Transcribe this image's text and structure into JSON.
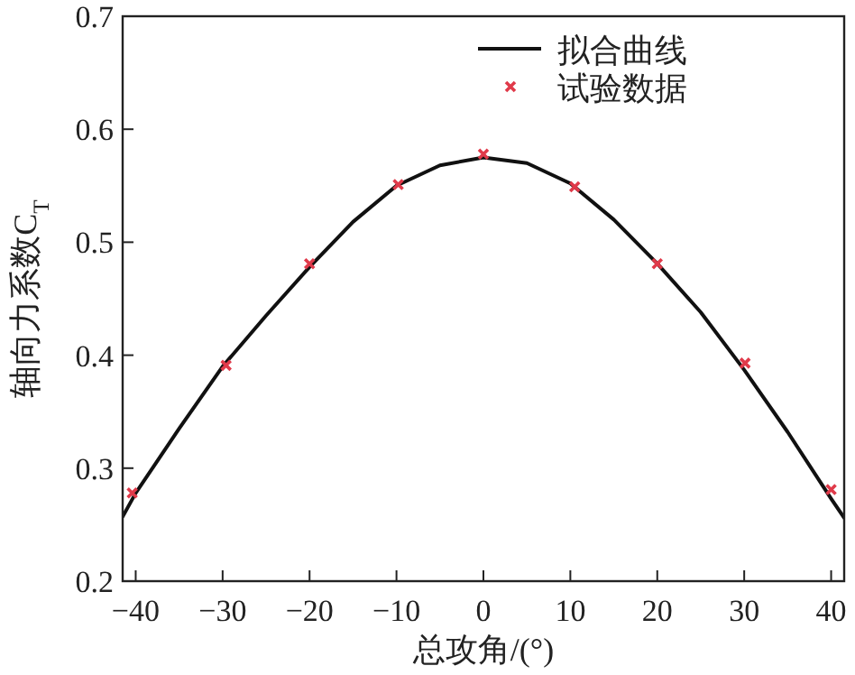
{
  "chart_data": {
    "type": "line",
    "xlabel": "总攻角/(°)",
    "ylabel": "轴向力系数C$_{T}$",
    "xlim": [
      -41.5,
      41.5
    ],
    "ylim": [
      0.2,
      0.7
    ],
    "xticks": [
      {
        "value": -40,
        "label": "−40"
      },
      {
        "value": -30,
        "label": "−30"
      },
      {
        "value": -20,
        "label": "−20"
      },
      {
        "value": -10,
        "label": "−10"
      },
      0,
      10,
      20,
      30,
      40
    ],
    "yticks": [
      {
        "value": 0.2,
        "label": "0.2"
      },
      {
        "value": 0.3,
        "label": "0.3"
      },
      {
        "value": 0.4,
        "label": "0.4"
      },
      {
        "value": 0.5,
        "label": "0.5"
      },
      {
        "value": 0.6,
        "label": "0.6"
      },
      {
        "value": 0.7,
        "label": "0.7"
      }
    ],
    "grid": false,
    "legend": "top right",
    "series": [
      {
        "name": "拟合曲线",
        "color": "#111111",
        "marker": "none",
        "line_style": "solid",
        "x": [
          -41.5,
          -40,
          -35,
          -30,
          -25,
          -20,
          -15,
          -10,
          -5,
          0,
          5,
          10,
          15,
          20,
          25,
          30,
          35,
          40,
          41.5
        ],
        "values": [
          0.257,
          0.278,
          0.335,
          0.39,
          0.435,
          0.478,
          0.518,
          0.55,
          0.568,
          0.575,
          0.57,
          0.552,
          0.52,
          0.481,
          0.438,
          0.387,
          0.332,
          0.273,
          0.256
        ]
      },
      {
        "name": "试验数据",
        "type": "scatter",
        "color": "#e03a4a",
        "marker": "cross",
        "x": [
          -40.4,
          -29.6,
          -20,
          -9.8,
          0,
          10.5,
          20,
          30.1,
          40
        ],
        "values": [
          0.278,
          0.391,
          0.481,
          0.551,
          0.578,
          0.549,
          0.481,
          0.393,
          0.281
        ]
      }
    ]
  }
}
